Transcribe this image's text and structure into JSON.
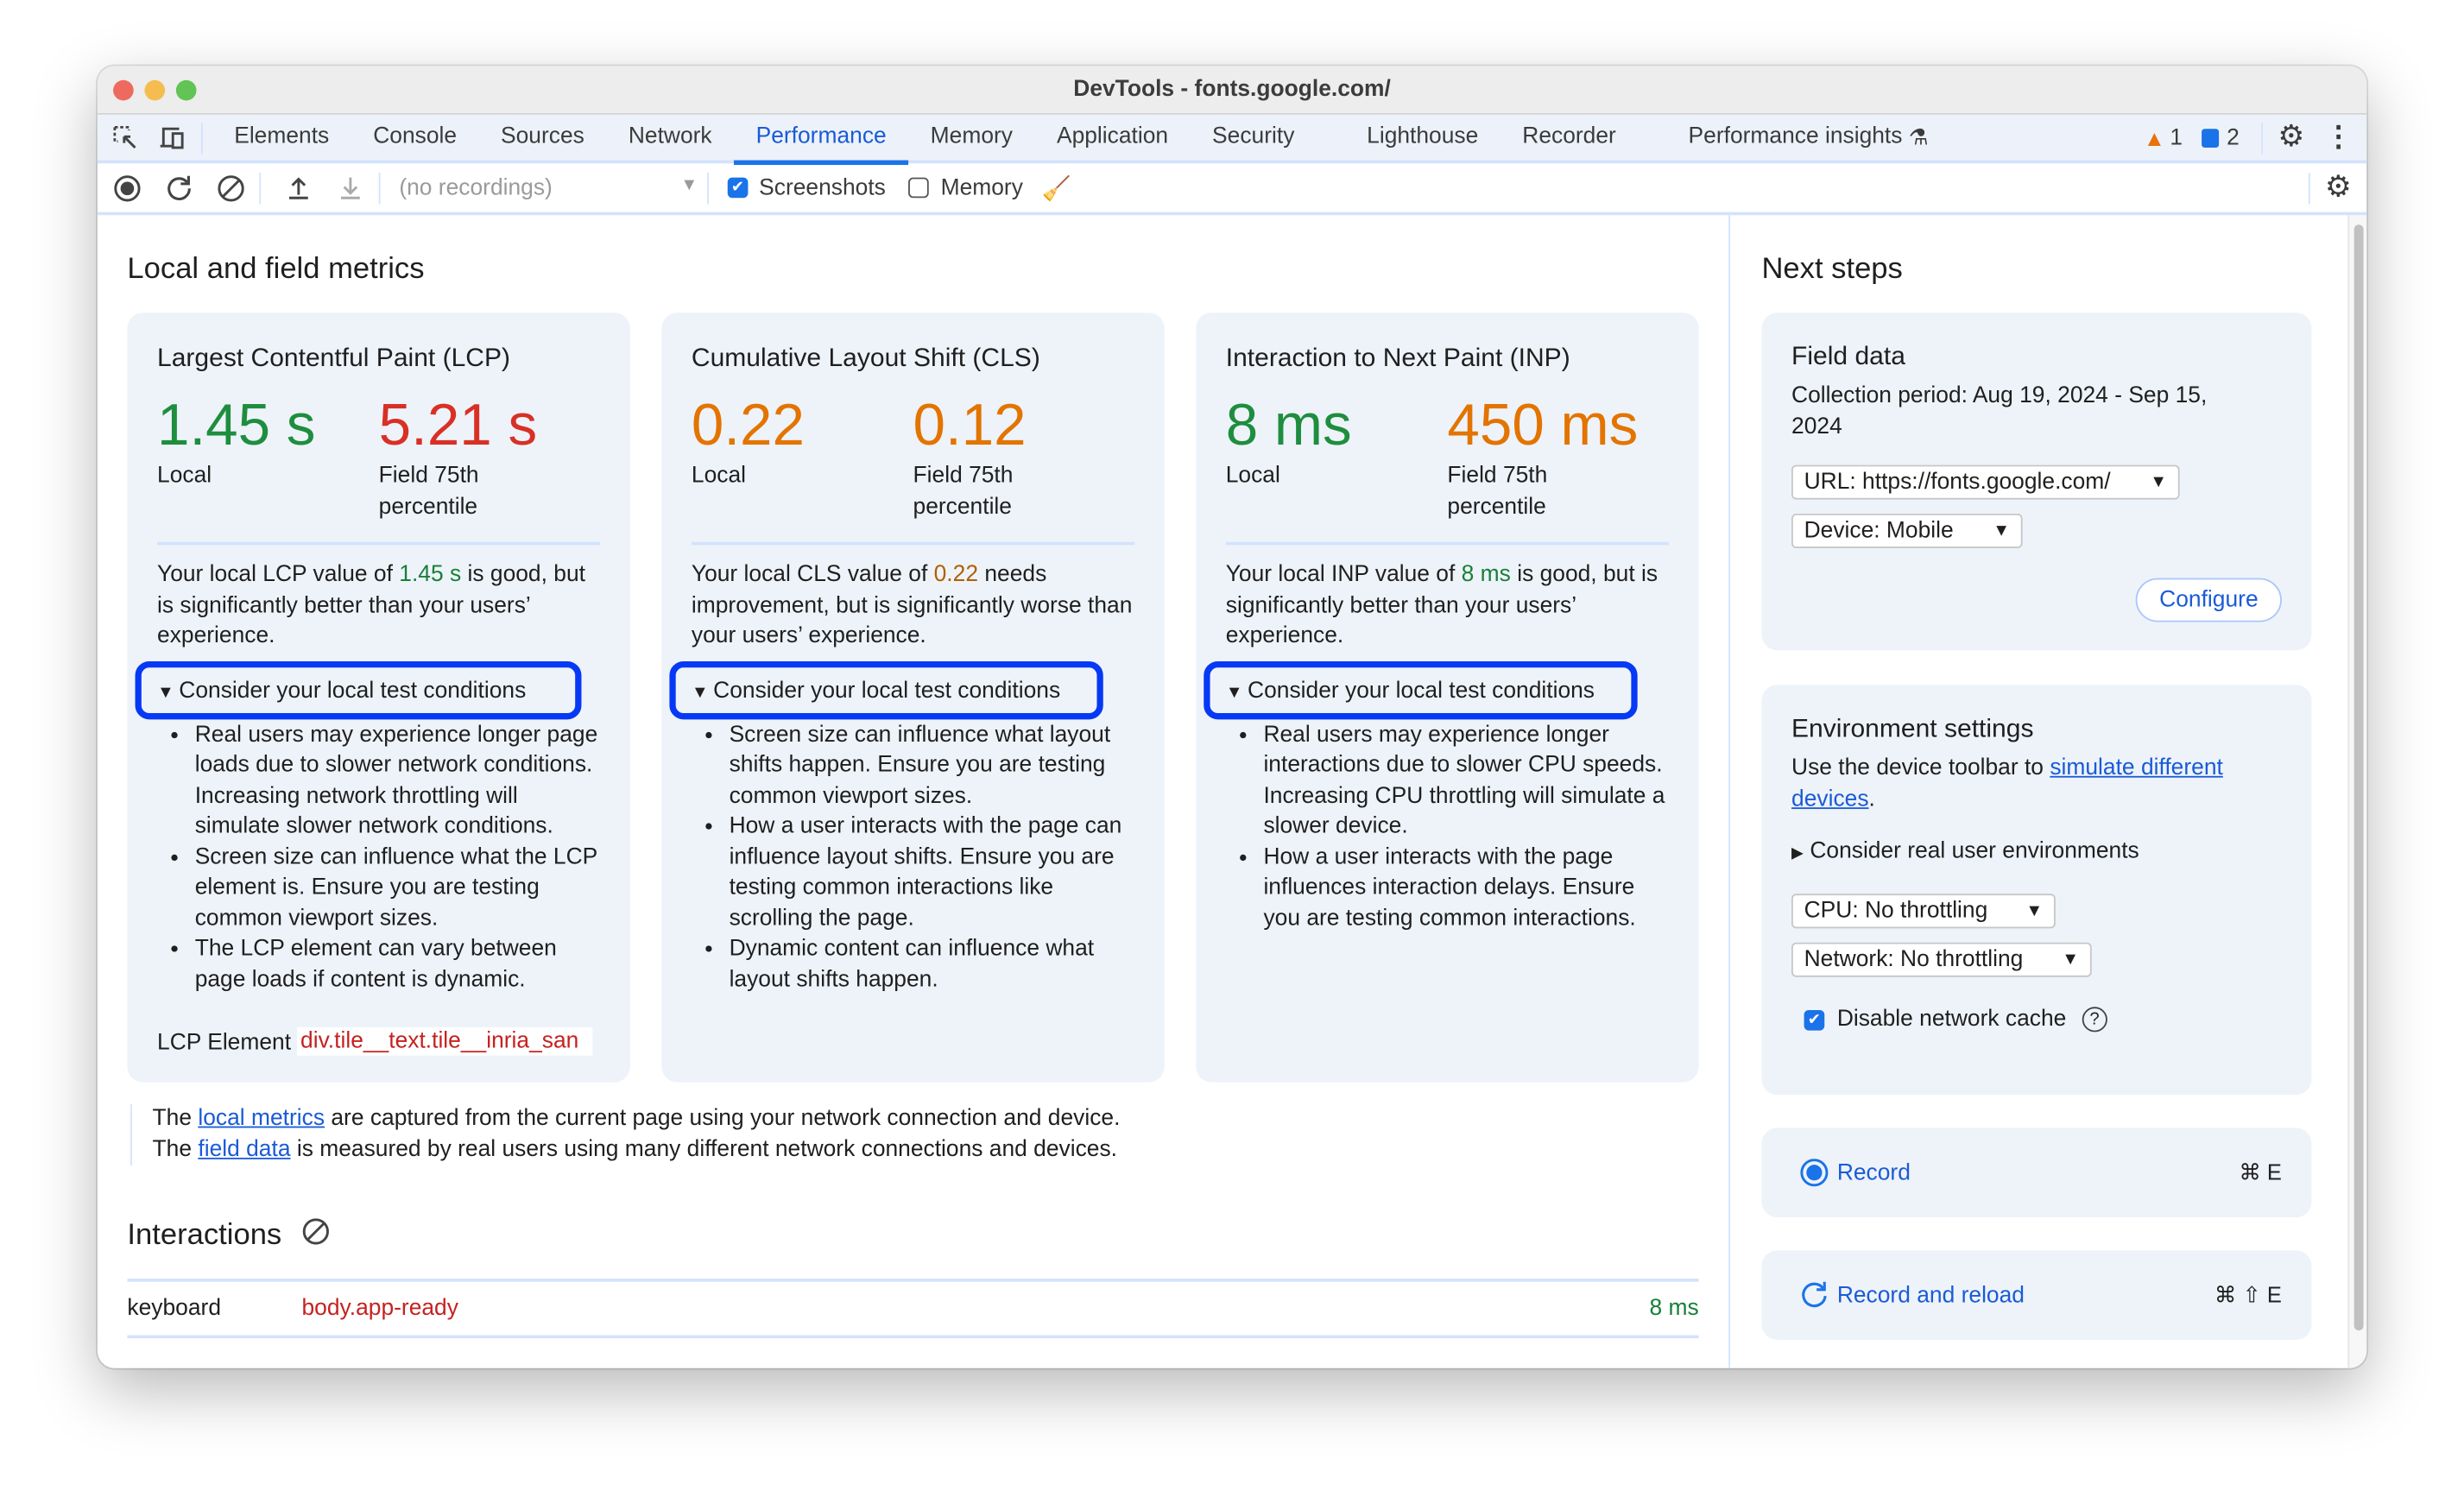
{
  "window": {
    "title": "DevTools - fonts.google.com/"
  },
  "tabs": [
    "Elements",
    "Console",
    "Sources",
    "Network",
    "Performance",
    "Memory",
    "Application",
    "Security",
    "Lighthouse",
    "Recorder",
    "Performance insights"
  ],
  "active_tab": "Performance",
  "badges": {
    "warnings": "1",
    "messages": "2"
  },
  "toolbar": {
    "recordings_select": "(no recordings)",
    "screenshots_label": "Screenshots",
    "screenshots_checked": true,
    "memory_label": "Memory",
    "memory_checked": false
  },
  "main": {
    "heading": "Local and field metrics",
    "cards": [
      {
        "title": "Largest Contentful Paint (LCP)",
        "local_value": "1.45 s",
        "local_label": "Local",
        "field_value": "5.21 s",
        "field_label": "Field 75th percentile",
        "desc_pre": "Your local LCP value of ",
        "desc_value": "1.45 s",
        "desc_post": " is good, but is significantly better than your users’ experience.",
        "summary": "Consider your local test conditions",
        "bullets": [
          "Real users may experience longer page loads due to slower network conditions. Increasing network throttling will simulate slower network conditions.",
          "Screen size can influence what the LCP element is. Ensure you are testing common viewport sizes.",
          "The LCP element can vary between page loads if content is dynamic."
        ],
        "element_label": "LCP Element",
        "element_value": "div.tile__text.tile__inria_san"
      },
      {
        "title": "Cumulative Layout Shift (CLS)",
        "local_value": "0.22",
        "local_label": "Local",
        "field_value": "0.12",
        "field_label": "Field 75th percentile",
        "desc_pre": "Your local CLS value of ",
        "desc_value": "0.22",
        "desc_post": " needs improvement, but is significantly worse than your users’ experience.",
        "summary": "Consider your local test conditions",
        "bullets": [
          "Screen size can influence what layout shifts happen. Ensure you are testing common viewport sizes.",
          "How a user interacts with the page can influence layout shifts. Ensure you are testing common interactions like scrolling the page.",
          "Dynamic content can influence what layout shifts happen."
        ]
      },
      {
        "title": "Interaction to Next Paint (INP)",
        "local_value": "8 ms",
        "local_label": "Local",
        "field_value": "450 ms",
        "field_label": "Field 75th percentile",
        "desc_pre": "Your local INP value of ",
        "desc_value": "8 ms",
        "desc_post": " is good, but is significantly better than your users’ experience.",
        "summary": "Consider your local test conditions",
        "bullets": [
          "Real users may experience longer interactions due to slower CPU speeds. Increasing CPU throttling will simulate a slower device.",
          "How a user interacts with the page influences interaction delays. Ensure you are testing common interactions."
        ]
      }
    ],
    "notes": [
      {
        "pre": "The ",
        "link": "local metrics",
        "post": " are captured from the current page using your network connection and device."
      },
      {
        "pre": "The ",
        "link": "field data",
        "post": " is measured by real users using many different network connections and devices."
      }
    ],
    "interactions": {
      "heading": "Interactions",
      "rows": [
        {
          "type": "keyboard",
          "target": "body.app-ready",
          "duration": "8 ms"
        }
      ]
    }
  },
  "sidebar": {
    "heading": "Next steps",
    "field_data": {
      "title": "Field data",
      "collection_period": "Collection period: Aug 19, 2024 - Sep 15, 2024",
      "url_select": "URL: https://fonts.google.com/",
      "device_select": "Device: Mobile",
      "configure_label": "Configure"
    },
    "environment": {
      "title": "Environment settings",
      "text_pre": "Use the device toolbar to ",
      "link": "simulate different devices",
      "text_post": ".",
      "summary": "Consider real user environments",
      "cpu_select": "CPU: No throttling",
      "network_select": "Network: No throttling",
      "cache_label": "Disable network cache",
      "cache_checked": true
    },
    "record": {
      "label": "Record",
      "shortcut": "⌘ E"
    },
    "record_reload": {
      "label": "Record and reload",
      "shortcut": "⌘ ⇧ E"
    }
  },
  "colors": {
    "good": "#1e8e3e",
    "poor": "#d93025",
    "needs_improvement": "#e37400",
    "accent": "#1a73e8",
    "highlight_outline": "#0639f5",
    "card_bg": "#eef3fa"
  }
}
